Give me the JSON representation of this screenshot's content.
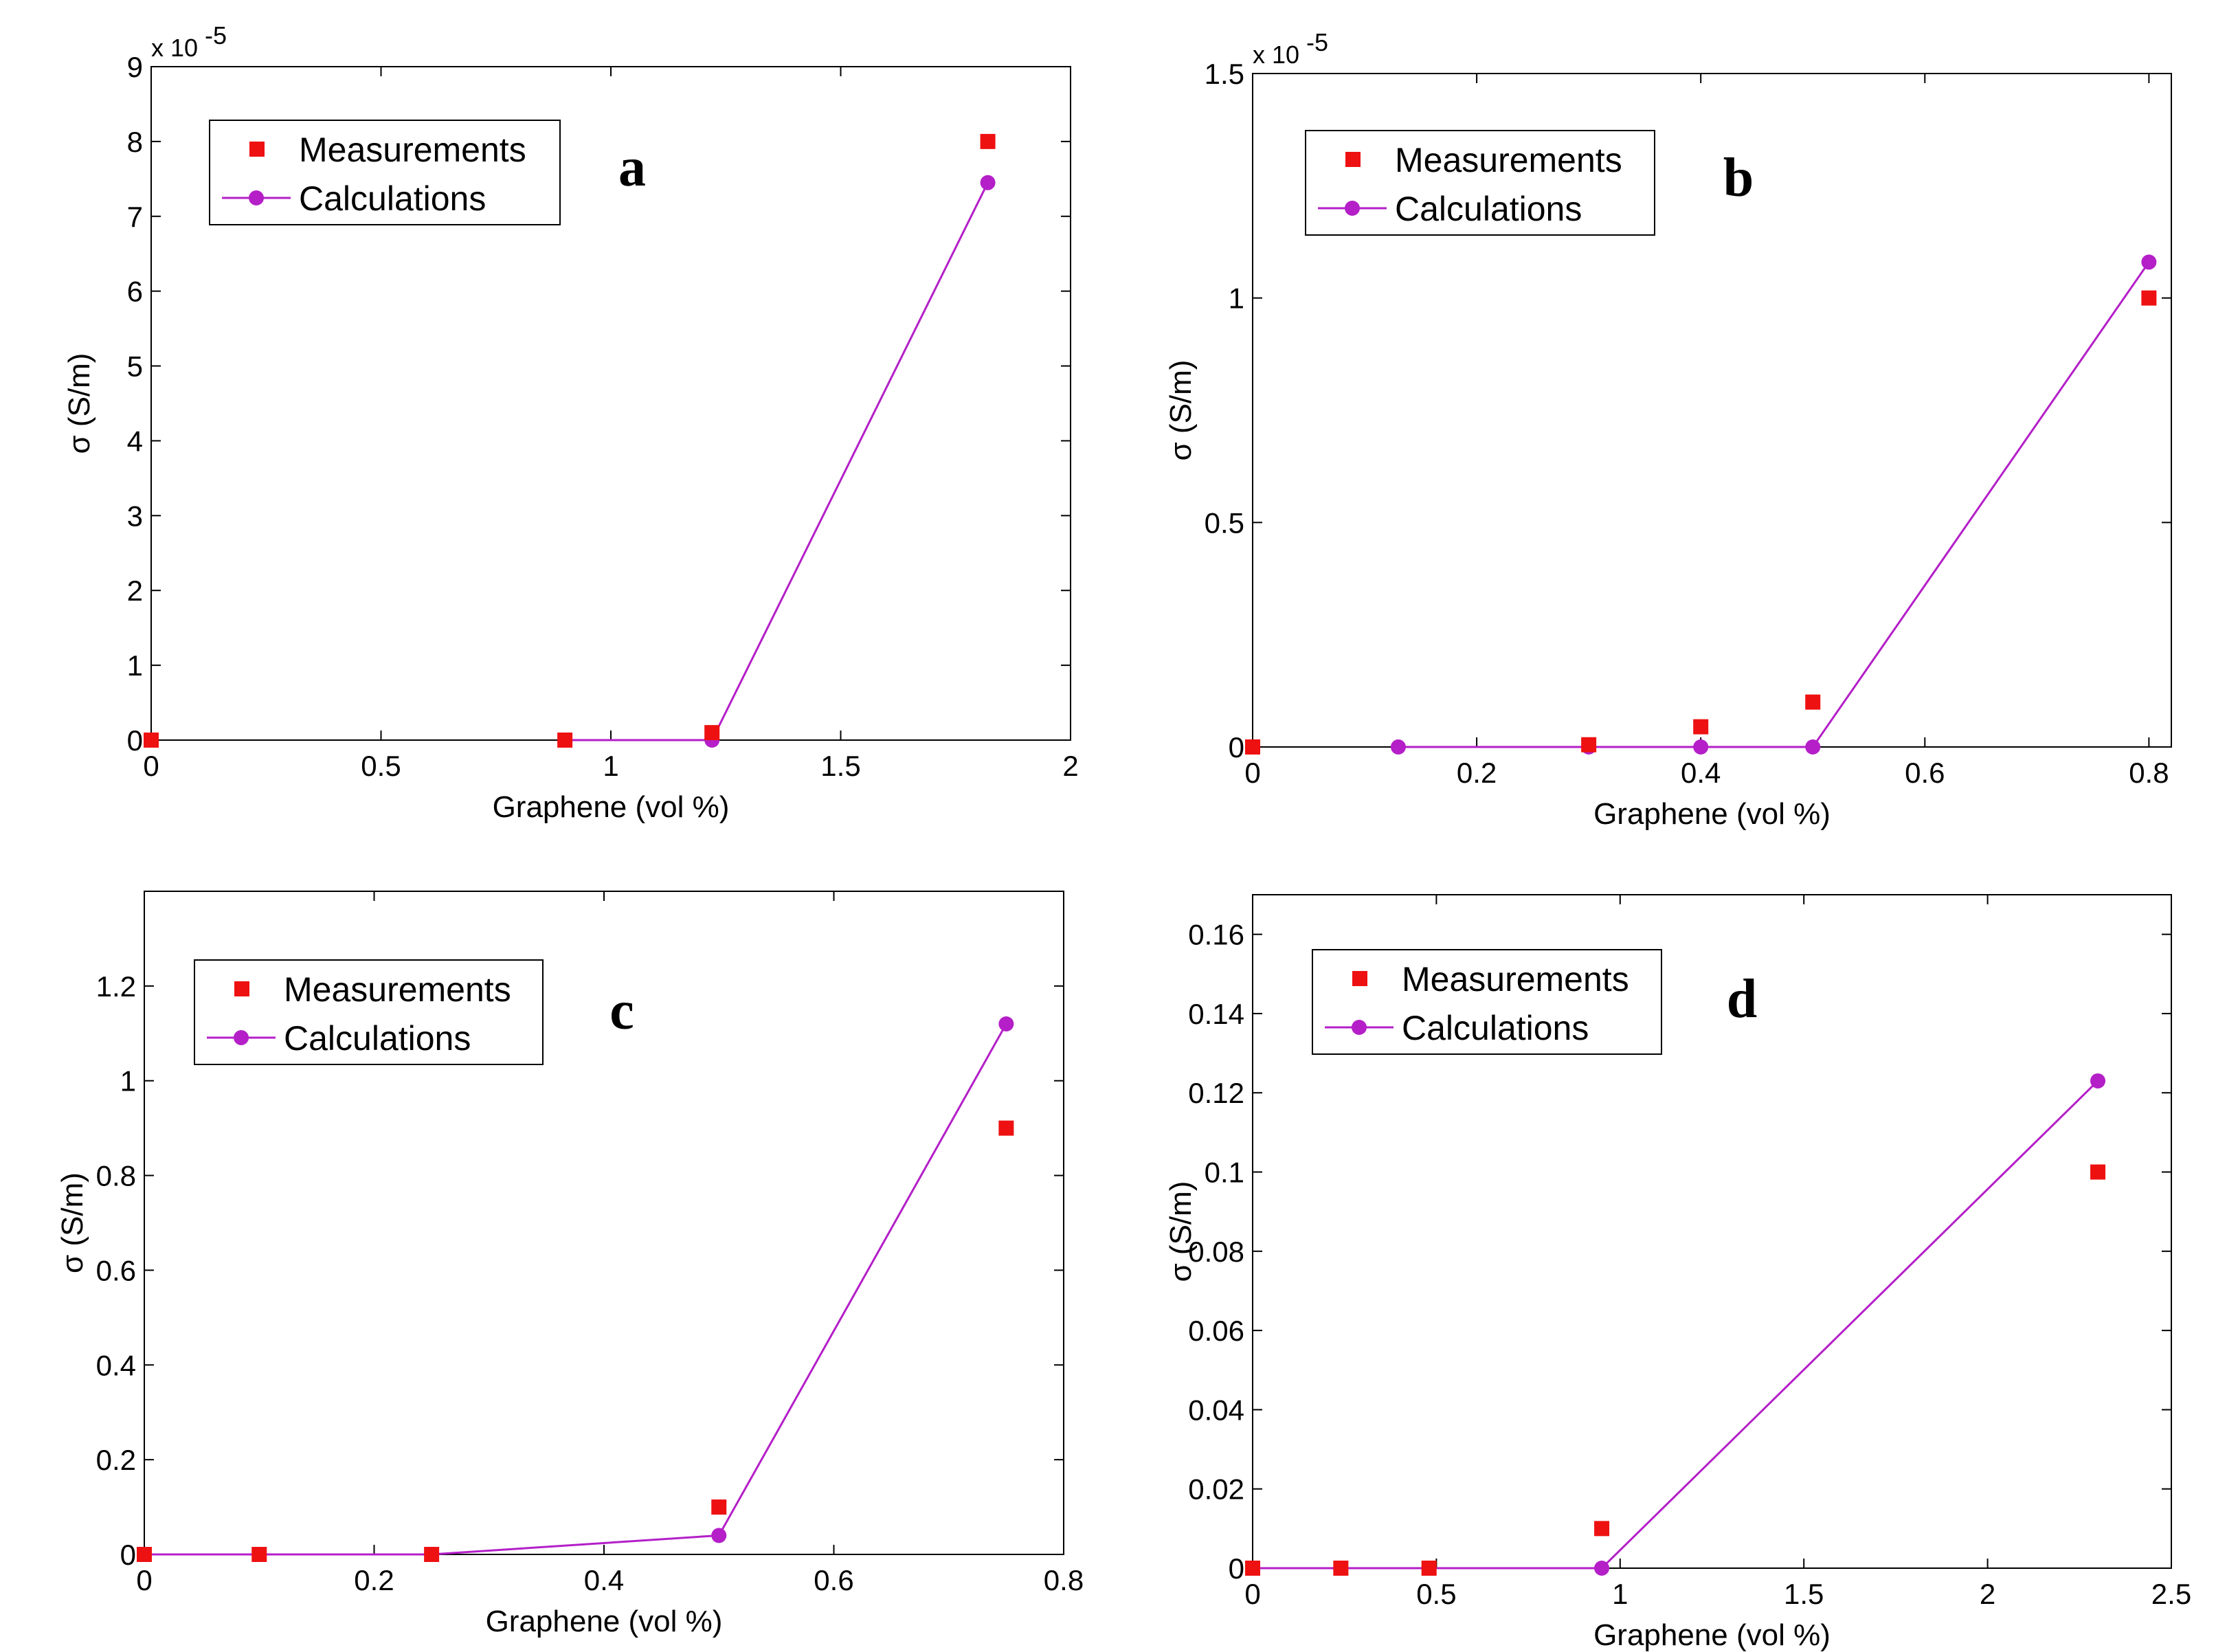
{
  "colors": {
    "measurements": "#ee1111",
    "calculations": "#b41fc8",
    "axis": "#000000"
  },
  "chart_data": [
    {
      "type": "scatter+line",
      "panel_label": "a",
      "xlabel": "Graphene (vol %)",
      "ylabel": "σ (S/m)",
      "multiplier_text": "x 10",
      "multiplier_exp": "-5",
      "xlim": [
        0,
        2
      ],
      "ylim": [
        0,
        9
      ],
      "xticks": [
        0,
        0.5,
        1,
        1.5,
        2
      ],
      "xtick_labels": [
        "0",
        "0.5",
        "1",
        "1.5",
        "2"
      ],
      "yticks": [
        0,
        1,
        2,
        3,
        4,
        5,
        6,
        7,
        8,
        9
      ],
      "ytick_labels": [
        "0",
        "1",
        "2",
        "3",
        "4",
        "5",
        "6",
        "7",
        "8",
        "9"
      ],
      "legend": [
        "Measurements",
        "Calculations"
      ],
      "series": [
        {
          "name": "Measurements",
          "style": "markers-square",
          "x": [
            0,
            0.9,
            1.22,
            1.82
          ],
          "y": [
            0,
            0,
            0.1,
            8.0
          ]
        },
        {
          "name": "Calculations",
          "style": "line-circle",
          "x": [
            0.9,
            1.22,
            1.82
          ],
          "y": [
            0,
            0,
            7.45
          ]
        }
      ]
    },
    {
      "type": "scatter+line",
      "panel_label": "b",
      "xlabel": "Graphene (vol %)",
      "ylabel": "σ (S/m)",
      "multiplier_text": "x 10",
      "multiplier_exp": "-5",
      "xlim": [
        0,
        0.82
      ],
      "ylim": [
        0,
        1.5
      ],
      "xticks": [
        0,
        0.2,
        0.4,
        0.6,
        0.8
      ],
      "xtick_labels": [
        "0",
        "0.2",
        "0.4",
        "0.6",
        "0.8"
      ],
      "yticks": [
        0,
        0.5,
        1,
        1.5
      ],
      "ytick_labels": [
        "0",
        "0.5",
        "1",
        "1.5"
      ],
      "legend": [
        "Measurements",
        "Calculations"
      ],
      "series": [
        {
          "name": "Measurements",
          "style": "markers-square",
          "x": [
            0,
            0.3,
            0.4,
            0.5,
            0.8
          ],
          "y": [
            0,
            0.005,
            0.045,
            0.1,
            1.0
          ]
        },
        {
          "name": "Calculations",
          "style": "line-circle",
          "x": [
            0.13,
            0.3,
            0.4,
            0.5,
            0.8
          ],
          "y": [
            0,
            0,
            0,
            0,
            1.08
          ]
        }
      ]
    },
    {
      "type": "scatter+line",
      "panel_label": "c",
      "xlabel": "Graphene (vol %)",
      "ylabel": "σ (S/m)",
      "xlim": [
        0,
        0.8
      ],
      "ylim": [
        0,
        1.4
      ],
      "xticks": [
        0,
        0.2,
        0.4,
        0.6,
        0.8
      ],
      "xtick_labels": [
        "0",
        "0.2",
        "0.4",
        "0.6",
        "0.8"
      ],
      "yticks": [
        0,
        0.2,
        0.4,
        0.6,
        0.8,
        1,
        1.2
      ],
      "ytick_labels": [
        "0",
        "0.2",
        "0.4",
        "0.6",
        "0.8",
        "1",
        "1.2"
      ],
      "legend": [
        "Measurements",
        "Calculations"
      ],
      "series": [
        {
          "name": "Measurements",
          "style": "markers-square",
          "x": [
            0,
            0.1,
            0.25,
            0.5,
            0.75
          ],
          "y": [
            0,
            0,
            0,
            0.1,
            0.9
          ]
        },
        {
          "name": "Calculations",
          "style": "line-circle",
          "x": [
            0,
            0.1,
            0.25,
            0.5,
            0.75
          ],
          "y": [
            0,
            0,
            0,
            0.04,
            1.12
          ]
        }
      ]
    },
    {
      "type": "scatter+line",
      "panel_label": "d",
      "xlabel": "Graphene (vol %)",
      "ylabel": "σ (S/m)",
      "xlim": [
        0,
        2.5
      ],
      "ylim": [
        0,
        0.17
      ],
      "xticks": [
        0,
        0.5,
        1,
        1.5,
        2,
        2.5
      ],
      "xtick_labels": [
        "0",
        "0.5",
        "1",
        "1.5",
        "2",
        "2.5"
      ],
      "yticks": [
        0,
        0.02,
        0.04,
        0.06,
        0.08,
        0.1,
        0.12,
        0.14,
        0.16
      ],
      "ytick_labels": [
        "0",
        "0.02",
        "0.04",
        "0.06",
        "0.08",
        "0.1",
        "0.12",
        "0.14",
        "0.16"
      ],
      "legend": [
        "Measurements",
        "Calculations"
      ],
      "series": [
        {
          "name": "Measurements",
          "style": "markers-square",
          "x": [
            0,
            0.24,
            0.48,
            0.95,
            2.3
          ],
          "y": [
            0,
            0,
            0,
            0.01,
            0.1
          ]
        },
        {
          "name": "Calculations",
          "style": "line-circle",
          "x": [
            0,
            0.24,
            0.48,
            0.95,
            2.3
          ],
          "y": [
            0,
            0,
            0,
            0,
            0.123
          ]
        }
      ]
    }
  ]
}
